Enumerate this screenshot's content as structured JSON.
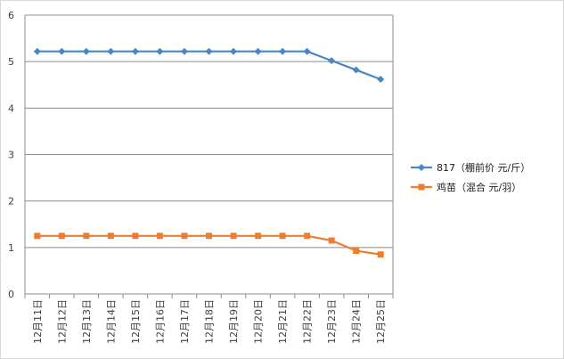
{
  "chart_data": {
    "type": "line",
    "categories": [
      "12月11日",
      "12月12日",
      "12月13日",
      "12月14日",
      "12月15日",
      "12月16日",
      "12月17日",
      "12月18日",
      "12月19日",
      "12月20日",
      "12月21日",
      "12月22日",
      "12月23日",
      "12月24日",
      "12月25日"
    ],
    "ylim": [
      0,
      6
    ],
    "yticks": [
      0,
      1,
      2,
      3,
      4,
      5,
      6
    ],
    "grid": true,
    "legend_position": "right",
    "series": [
      {
        "name": "817（棚前价 元/斤）",
        "color": "#4a86c5",
        "marker": "diamond",
        "values": [
          5.22,
          5.22,
          5.22,
          5.22,
          5.22,
          5.22,
          5.22,
          5.22,
          5.22,
          5.22,
          5.22,
          5.22,
          5.02,
          4.82,
          4.62
        ]
      },
      {
        "name": "鸡苗（混合 元/羽）",
        "color": "#ed7d31",
        "marker": "square",
        "values": [
          1.25,
          1.25,
          1.25,
          1.25,
          1.25,
          1.25,
          1.25,
          1.25,
          1.25,
          1.25,
          1.25,
          1.25,
          1.15,
          0.93,
          0.85
        ]
      }
    ]
  }
}
